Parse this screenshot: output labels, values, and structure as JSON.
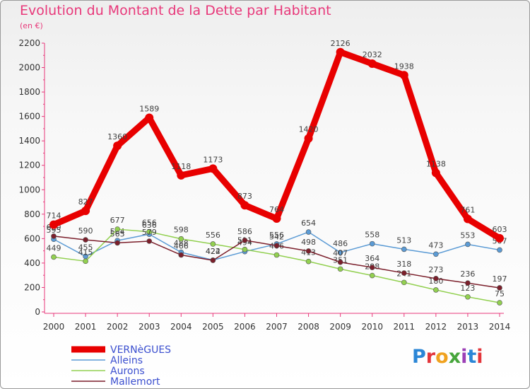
{
  "header": {
    "title": "Evolution du Montant de la Dette par Habitant",
    "unit": "(en €)"
  },
  "logo": {
    "letters": [
      "P",
      "r",
      "o",
      "x",
      "i",
      "t",
      "i"
    ]
  },
  "chart_data": {
    "type": "line",
    "title": "Evolution du Montant de la Dette par Habitant",
    "ylabel": "(en €)",
    "xlabel": "",
    "x": [
      "2000",
      "2001",
      "2002",
      "2003",
      "2004",
      "2005",
      "2006",
      "2007",
      "2008",
      "2009",
      "2010",
      "2011",
      "2012",
      "2013",
      "2014"
    ],
    "ylim": [
      0,
      2200
    ],
    "yticks": [
      0,
      200,
      400,
      600,
      800,
      1000,
      1200,
      1400,
      1600,
      1800,
      2000,
      2200
    ],
    "grid": false,
    "legend_position": "bottom-left",
    "series": [
      {
        "name": "Alleins",
        "color": "#5b9bd5",
        "values": [
          595,
          455,
          584,
          636,
          488,
          424,
          494,
          556,
          654,
          486,
          558,
          513,
          473,
          553,
          507
        ]
      },
      {
        "name": "Aurons",
        "color": "#92d050",
        "values": [
          449,
          415,
          677,
          656,
          598,
          556,
          511,
          466,
          413,
          351,
          298,
          241,
          180,
          123,
          75
        ]
      },
      {
        "name": "Mallemort",
        "color": "#7b1f2b",
        "values": [
          620,
          590,
          565,
          579,
          466,
          422,
          586,
          542,
          498,
          407,
          364,
          318,
          273,
          236,
          197
        ]
      },
      {
        "name": "VERNèGUES",
        "color": "#e80000",
        "values": [
          714,
          827,
          1360,
          1589,
          1118,
          1173,
          873,
          764,
          1420,
          2126,
          2032,
          1938,
          1138,
          761,
          603
        ]
      }
    ]
  }
}
